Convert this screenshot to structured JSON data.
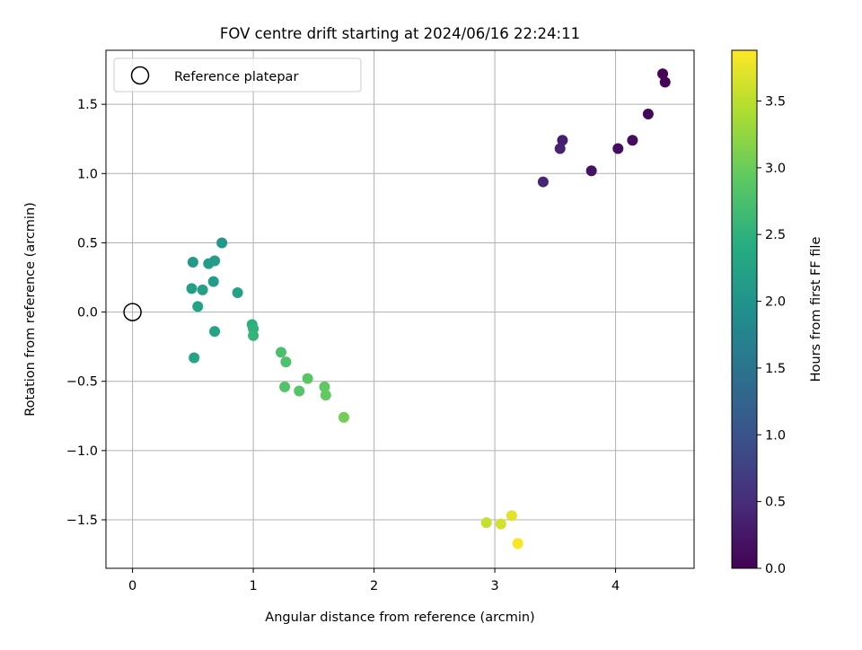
{
  "chart_data": {
    "type": "scatter",
    "title": "FOV centre drift starting at 2024/06/16 22:24:11",
    "xlabel": "Angular distance from reference (arcmin)",
    "ylabel": "Rotation from reference (arcmin)",
    "xlim": [
      -0.22,
      4.65
    ],
    "ylim": [
      -1.85,
      1.89
    ],
    "xticks": [
      0,
      1,
      2,
      3,
      4
    ],
    "xtick_labels": [
      "0",
      "1",
      "2",
      "3",
      "4"
    ],
    "yticks": [
      -1.5,
      -1.0,
      -0.5,
      0.0,
      0.5,
      1.0,
      1.5
    ],
    "ytick_labels": [
      "−1.5",
      "−1.0",
      "−0.5",
      "0.0",
      "0.5",
      "1.0",
      "1.5"
    ],
    "grid": true,
    "legend": {
      "placement": "top-left",
      "entries": [
        "Reference platepar"
      ]
    },
    "reference_point": {
      "x": 0,
      "y": 0,
      "label": "Reference platepar"
    },
    "colorbar": {
      "label": "Hours from first FF file",
      "colormap": "viridis",
      "range": [
        0.0,
        3.88
      ],
      "ticks": [
        0.0,
        0.5,
        1.0,
        1.5,
        2.0,
        2.5,
        3.0,
        3.5
      ],
      "tick_labels": [
        "0.0",
        "0.5",
        "1.0",
        "1.5",
        "2.0",
        "2.5",
        "3.0",
        "3.5"
      ]
    },
    "points": [
      {
        "x": 4.39,
        "y": 1.72,
        "hours": 0.02
      },
      {
        "x": 4.41,
        "y": 1.66,
        "hours": 0.05
      },
      {
        "x": 4.27,
        "y": 1.43,
        "hours": 0.08
      },
      {
        "x": 4.14,
        "y": 1.24,
        "hours": 0.11
      },
      {
        "x": 4.02,
        "y": 1.18,
        "hours": 0.14
      },
      {
        "x": 3.8,
        "y": 1.02,
        "hours": 0.18
      },
      {
        "x": 3.56,
        "y": 1.24,
        "hours": 0.33
      },
      {
        "x": 3.54,
        "y": 1.18,
        "hours": 0.37
      },
      {
        "x": 3.4,
        "y": 0.94,
        "hours": 0.42
      },
      {
        "x": 0.74,
        "y": 0.5,
        "hours": 2.08
      },
      {
        "x": 0.5,
        "y": 0.36,
        "hours": 2.1
      },
      {
        "x": 0.63,
        "y": 0.35,
        "hours": 2.12
      },
      {
        "x": 0.68,
        "y": 0.37,
        "hours": 2.14
      },
      {
        "x": 0.67,
        "y": 0.22,
        "hours": 2.16
      },
      {
        "x": 0.49,
        "y": 0.17,
        "hours": 2.18
      },
      {
        "x": 0.58,
        "y": 0.16,
        "hours": 2.2
      },
      {
        "x": 0.87,
        "y": 0.14,
        "hours": 2.22
      },
      {
        "x": 0.54,
        "y": 0.04,
        "hours": 2.24
      },
      {
        "x": 0.68,
        "y": -0.14,
        "hours": 2.26
      },
      {
        "x": 0.51,
        "y": -0.33,
        "hours": 2.28
      },
      {
        "x": 0.99,
        "y": -0.09,
        "hours": 2.45
      },
      {
        "x": 1.0,
        "y": -0.12,
        "hours": 2.5
      },
      {
        "x": 1.0,
        "y": -0.17,
        "hours": 2.55
      },
      {
        "x": 1.23,
        "y": -0.29,
        "hours": 2.75
      },
      {
        "x": 1.27,
        "y": -0.36,
        "hours": 2.78
      },
      {
        "x": 1.26,
        "y": -0.54,
        "hours": 2.82
      },
      {
        "x": 1.38,
        "y": -0.57,
        "hours": 2.85
      },
      {
        "x": 1.45,
        "y": -0.48,
        "hours": 2.88
      },
      {
        "x": 1.59,
        "y": -0.54,
        "hours": 2.92
      },
      {
        "x": 1.6,
        "y": -0.6,
        "hours": 2.95
      },
      {
        "x": 1.75,
        "y": -0.76,
        "hours": 3.05
      },
      {
        "x": 2.93,
        "y": -1.52,
        "hours": 3.55
      },
      {
        "x": 3.05,
        "y": -1.53,
        "hours": 3.62
      },
      {
        "x": 3.14,
        "y": -1.47,
        "hours": 3.72
      },
      {
        "x": 3.19,
        "y": -1.67,
        "hours": 3.85
      }
    ]
  }
}
